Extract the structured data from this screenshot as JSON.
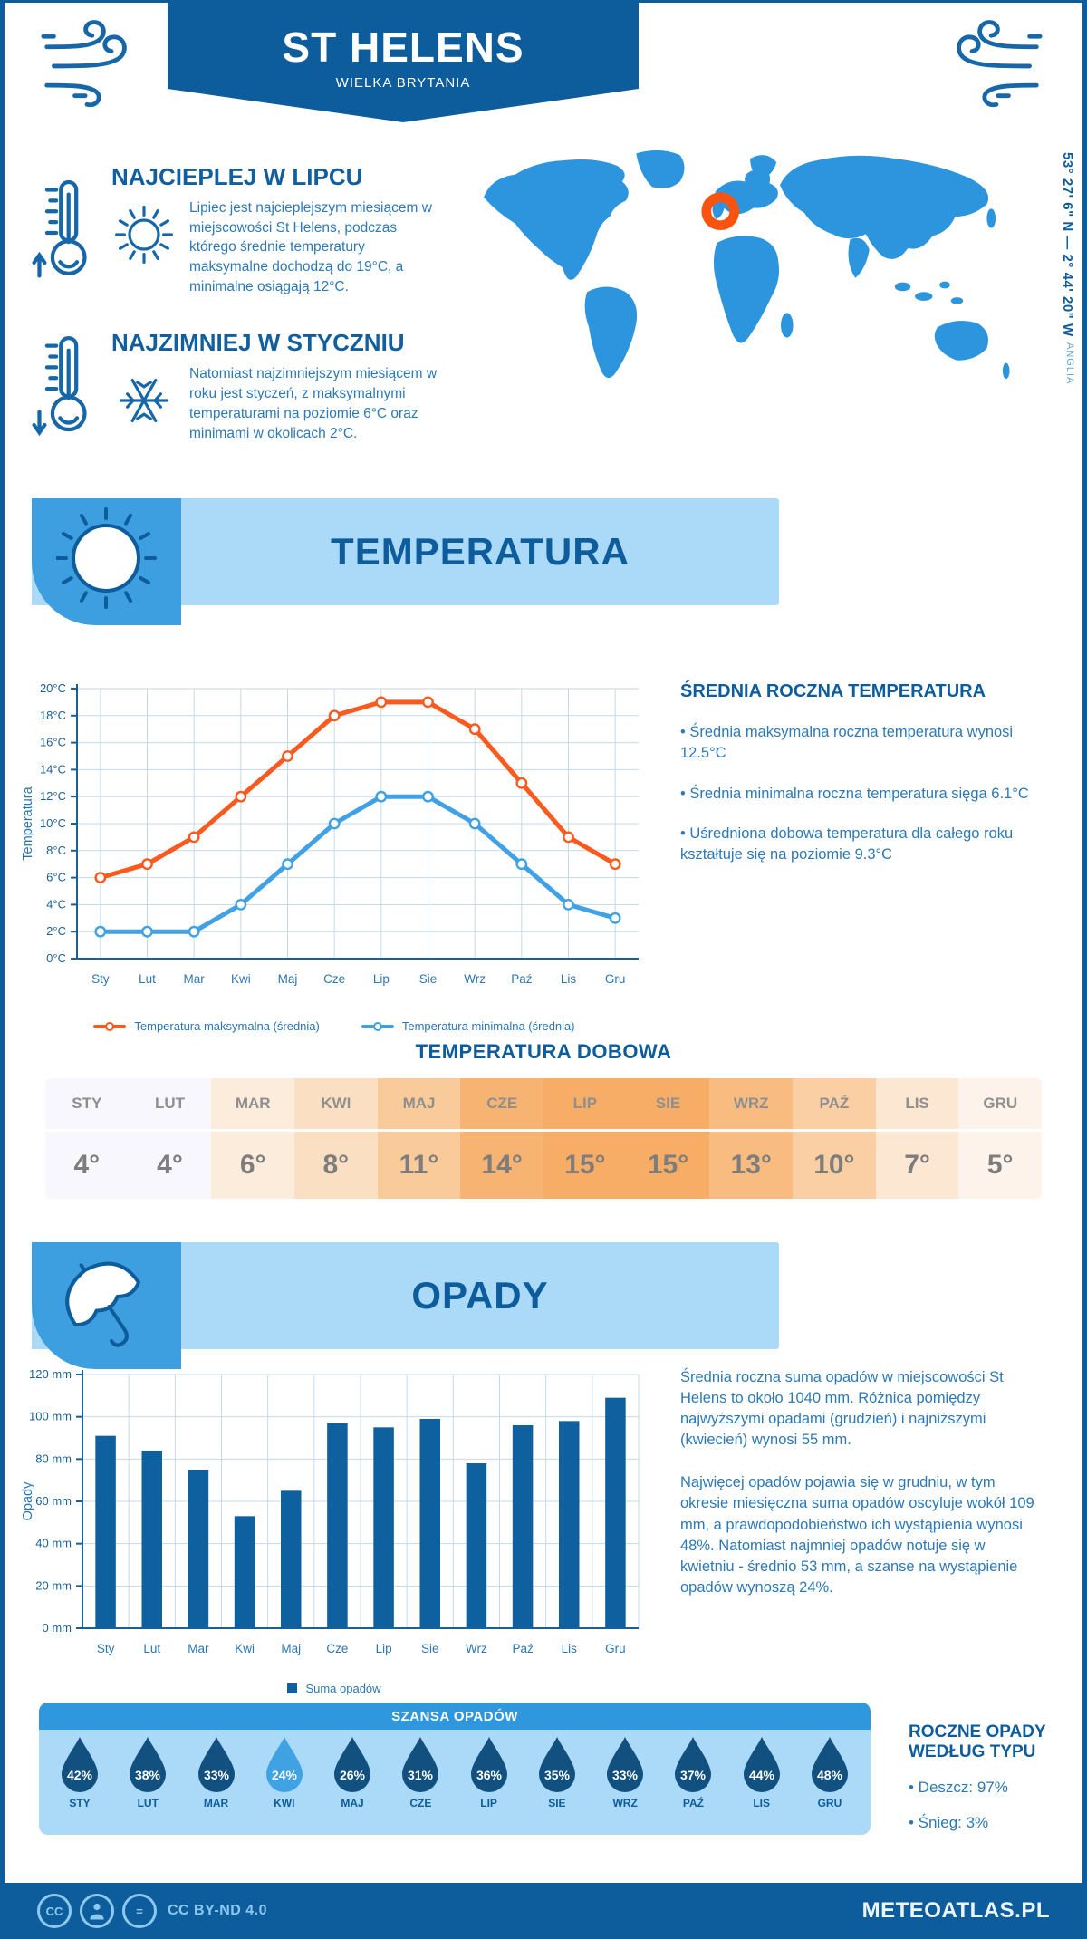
{
  "header": {
    "title": "ST HELENS",
    "subtitle": "WIELKA BRYTANIA"
  },
  "highlights": {
    "warmest": {
      "title": "NAJCIEPLEJ W LIPCU",
      "text": "Lipiec jest najcieplejszym miesiącem w miejscowości St Helens, podczas którego średnie temperatury maksymalne dochodzą do 19°C, a minimalne osiągają 12°C."
    },
    "coldest": {
      "title": "NAJZIMNIEJ W STYCZNIU",
      "text": "Natomiast najzimniejszym miesiącem w roku jest styczeń, z maksymalnymi temperaturami na poziomie 6°C oraz minimami w okolicach 2°C."
    }
  },
  "map": {
    "coordinates": "53° 27' 6\" N — 2° 44' 20\" W",
    "region": "ANGLIA",
    "land_color": "#2d95dd",
    "marker_color": "#f9530f"
  },
  "section_temperature": {
    "banner": "TEMPERATURA"
  },
  "temperature_summary": {
    "title": "ŚREDNIA ROCZNA TEMPERATURA",
    "bullets": [
      "• Średnia maksymalna roczna temperatura wynosi 12.5°C",
      "• Średnia minimalna roczna temperatura sięga 6.1°C",
      "• Uśredniona dobowa temperatura dla całego roku kształtuje się na poziomie 9.3°C"
    ]
  },
  "daily_temperature": {
    "title": "TEMPERATURA DOBOWA",
    "months": [
      "STY",
      "LUT",
      "MAR",
      "KWI",
      "MAJ",
      "CZE",
      "LIP",
      "SIE",
      "WRZ",
      "PAŹ",
      "LIS",
      "GRU"
    ],
    "values": [
      4,
      4,
      6,
      8,
      11,
      14,
      15,
      15,
      13,
      10,
      7,
      5
    ],
    "unit": "°",
    "cell_colors": {
      "4": "#f7f7fd",
      "5": "#fdf3ea",
      "6": "#fcecdb",
      "7": "#fce7d2",
      "8": "#fbdfc2",
      "10": "#facfa4",
      "11": "#f9cb9b",
      "13": "#f8bc80",
      "14": "#f7b371",
      "15": "#f7ad66"
    },
    "month_text_color": "#8f8f8f",
    "value_text_color": "#7d7d7d"
  },
  "section_precipitation": {
    "banner": "OPADY"
  },
  "precipitation_summary": {
    "paragraphs": [
      "Średnia roczna suma opadów w miejscowości St Helens to około 1040 mm. Różnica pomiędzy najwyższymi opadami (grudzień) i najniższymi (kwiecień) wynosi 55 mm.",
      "Najwięcej opadów pojawia się w grudniu, w tym okresie miesięczna suma opadów oscyluje wokół 109 mm, a prawdopodobieństwo ich wystąpienia wynosi 48%. Natomiast najmniej opadów notuje się w kwietniu - średnio 53 mm, a szanse na wystąpienie opadów wynoszą 24%."
    ]
  },
  "precipitation_type": {
    "title": "ROCZNE OPADY WEDŁUG TYPU",
    "bullets": [
      "• Deszcz: 97%",
      "• Śnieg: 3%"
    ]
  },
  "rain_chance": {
    "title": "SZANSA OPADÓW",
    "months": [
      "STY",
      "LUT",
      "MAR",
      "KWI",
      "MAJ",
      "CZE",
      "LIP",
      "SIE",
      "WRZ",
      "PAŹ",
      "LIS",
      "GRU"
    ],
    "values": [
      42,
      38,
      33,
      24,
      26,
      31,
      36,
      35,
      33,
      37,
      44,
      48
    ],
    "unit": "%",
    "droplet_color": "#11507f",
    "highlight_color": "#3fa3e3",
    "highlight_index": 3
  },
  "footer": {
    "license": "CC BY-ND 4.0",
    "brand": "METEOATLAS.PL"
  },
  "chart_data": [
    {
      "type": "line",
      "title": "",
      "categories": [
        "Sty",
        "Lut",
        "Mar",
        "Kwi",
        "Maj",
        "Cze",
        "Lip",
        "Sie",
        "Wrz",
        "Paź",
        "Lis",
        "Gru"
      ],
      "series": [
        {
          "name": "Temperatura maksymalna (średnia)",
          "color": "#fb5a1f",
          "values": [
            6,
            7,
            9,
            12,
            15,
            18,
            19,
            19,
            17,
            13,
            9,
            7
          ]
        },
        {
          "name": "Temperatura minimalna (średnia)",
          "color": "#41a1e5",
          "values": [
            2,
            2,
            2,
            4,
            7,
            10,
            12,
            12,
            10,
            7,
            4,
            3
          ]
        }
      ],
      "xlabel": "",
      "ylabel": "Temperatura",
      "ylim": [
        0,
        20
      ],
      "ytick_step": 2,
      "ytick_suffix": "°C",
      "grid": true,
      "legend_position": "bottom"
    },
    {
      "type": "bar",
      "title": "",
      "categories": [
        "Sty",
        "Lut",
        "Mar",
        "Kwi",
        "Maj",
        "Cze",
        "Lip",
        "Sie",
        "Wrz",
        "Paź",
        "Lis",
        "Gru"
      ],
      "series": [
        {
          "name": "Suma opadów",
          "color": "#0f609f",
          "values": [
            91,
            84,
            75,
            53,
            65,
            97,
            95,
            99,
            78,
            96,
            98,
            109
          ]
        }
      ],
      "xlabel": "",
      "ylabel": "Opady",
      "ylim": [
        0,
        120
      ],
      "ytick_step": 20,
      "ytick_suffix": " mm",
      "grid": true,
      "legend_position": "bottom"
    }
  ]
}
